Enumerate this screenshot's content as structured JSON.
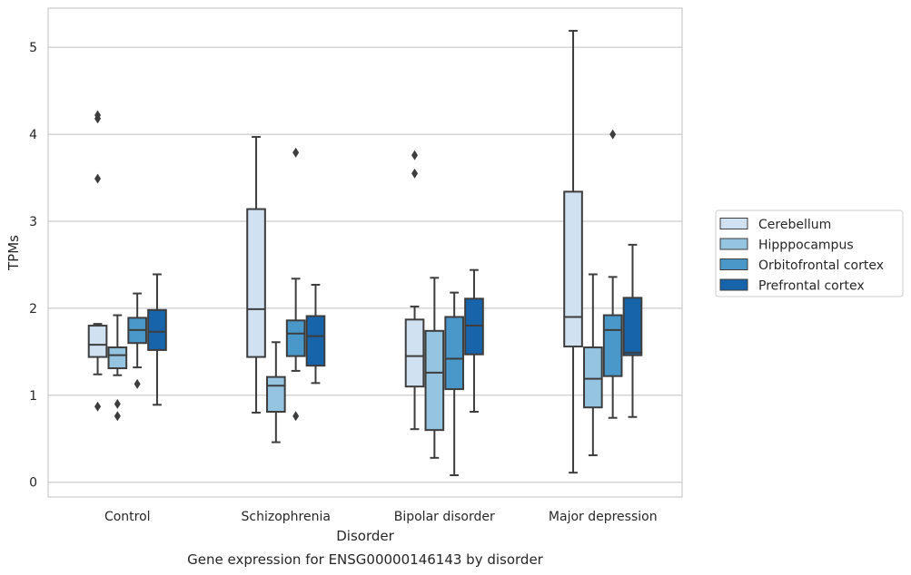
{
  "chart_data": {
    "type": "box",
    "xlabel": "Disorder",
    "ylabel": "TPMs",
    "caption": "Gene expression for ENSG00000146143 by disorder",
    "ylim": [
      -0.17,
      5.45
    ],
    "yticks": [
      0,
      1,
      2,
      3,
      4,
      5
    ],
    "grid": "horizontal",
    "legend_position": "right",
    "categories": [
      "Control",
      "Schizophrenia",
      "Bipolar disorder",
      "Major depression"
    ],
    "series": [
      {
        "name": "Cerebellum",
        "color": "#d0e1f2",
        "boxes": [
          {
            "whisker_low": 1.24,
            "q1": 1.44,
            "median": 1.58,
            "q3": 1.8,
            "whisker_high": 1.82,
            "outliers": [
              0.87,
              3.49,
              4.18,
              4.22
            ]
          },
          {
            "whisker_low": 0.8,
            "q1": 1.44,
            "median": 1.99,
            "q3": 3.14,
            "whisker_high": 3.97,
            "outliers": []
          },
          {
            "whisker_low": 0.61,
            "q1": 1.1,
            "median": 1.45,
            "q3": 1.87,
            "whisker_high": 2.02,
            "outliers": [
              3.55,
              3.76
            ]
          },
          {
            "whisker_low": 0.11,
            "q1": 1.56,
            "median": 1.9,
            "q3": 3.34,
            "whisker_high": 5.19,
            "outliers": []
          }
        ]
      },
      {
        "name": "Hipppocampus",
        "color": "#94c4df",
        "boxes": [
          {
            "whisker_low": 1.23,
            "q1": 1.31,
            "median": 1.46,
            "q3": 1.55,
            "whisker_high": 1.92,
            "outliers": [
              0.76,
              0.9
            ]
          },
          {
            "whisker_low": 0.46,
            "q1": 0.81,
            "median": 1.11,
            "q3": 1.21,
            "whisker_high": 1.61,
            "outliers": []
          },
          {
            "whisker_low": 0.28,
            "q1": 0.6,
            "median": 1.26,
            "q3": 1.74,
            "whisker_high": 2.35,
            "outliers": []
          },
          {
            "whisker_low": 0.31,
            "q1": 0.86,
            "median": 1.19,
            "q3": 1.55,
            "whisker_high": 2.39,
            "outliers": []
          }
        ]
      },
      {
        "name": "Orbitofrontal cortex",
        "color": "#4a98c9",
        "boxes": [
          {
            "whisker_low": 1.32,
            "q1": 1.6,
            "median": 1.75,
            "q3": 1.89,
            "whisker_high": 2.17,
            "outliers": [
              1.13
            ]
          },
          {
            "whisker_low": 1.28,
            "q1": 1.45,
            "median": 1.71,
            "q3": 1.86,
            "whisker_high": 2.34,
            "outliers": [
              0.76,
              3.79
            ]
          },
          {
            "whisker_low": 0.08,
            "q1": 1.07,
            "median": 1.42,
            "q3": 1.9,
            "whisker_high": 2.18,
            "outliers": []
          },
          {
            "whisker_low": 0.74,
            "q1": 1.22,
            "median": 1.75,
            "q3": 1.92,
            "whisker_high": 2.36,
            "outliers": [
              4.0
            ]
          }
        ]
      },
      {
        "name": "Prefrontal cortex",
        "color": "#1764ab",
        "boxes": [
          {
            "whisker_low": 0.89,
            "q1": 1.52,
            "median": 1.73,
            "q3": 1.98,
            "whisker_high": 2.39,
            "outliers": []
          },
          {
            "whisker_low": 1.14,
            "q1": 1.34,
            "median": 1.68,
            "q3": 1.91,
            "whisker_high": 2.27,
            "outliers": []
          },
          {
            "whisker_low": 0.81,
            "q1": 1.47,
            "median": 1.8,
            "q3": 2.11,
            "whisker_high": 2.44,
            "outliers": []
          },
          {
            "whisker_low": 0.75,
            "q1": 1.46,
            "median": 1.49,
            "q3": 2.12,
            "whisker_high": 2.73,
            "outliers": []
          }
        ]
      }
    ]
  }
}
